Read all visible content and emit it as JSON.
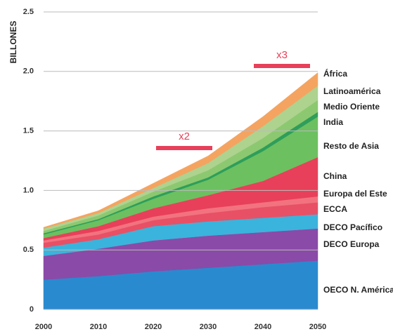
{
  "chart_data": {
    "type": "area",
    "stacked": true,
    "y_label": "BILLONES",
    "x": [
      2000,
      2010,
      2020,
      2030,
      2040,
      2050
    ],
    "xlim": [
      2000,
      2050
    ],
    "xticks": [
      2000,
      2010,
      2020,
      2030,
      2040,
      2050
    ],
    "ylim": [
      0,
      2.5
    ],
    "yticks": [
      0,
      0.5,
      {
        "value": 1,
        "label": "1.0"
      },
      1.5,
      {
        "value": 2,
        "label": "2.0"
      },
      2.5
    ],
    "grid": true,
    "annotations": [
      "x2",
      "x3"
    ],
    "annotation_color": "#e8405a",
    "series": [
      {
        "name": "OECO N. América",
        "color": "#2a8ad0",
        "values": [
          0.25,
          0.28,
          0.32,
          0.35,
          0.38,
          0.41
        ]
      },
      {
        "name": "DECO Europa",
        "color": "#8a4aa8",
        "values": [
          0.2,
          0.23,
          0.26,
          0.27,
          0.27,
          0.27
        ]
      },
      {
        "name": "DECO Pacífico",
        "color": "#3ab4dc",
        "values": [
          0.07,
          0.08,
          0.12,
          0.12,
          0.12,
          0.12
        ]
      },
      {
        "name": "ECCA",
        "color": "#e85066",
        "values": [
          0.04,
          0.04,
          0.05,
          0.07,
          0.09,
          0.1
        ]
      },
      {
        "name": "Europa del Este",
        "color": "#f2737f",
        "values": [
          0.02,
          0.03,
          0.03,
          0.04,
          0.04,
          0.05
        ]
      },
      {
        "name": "China",
        "color": "#e8405a",
        "values": [
          0.02,
          0.04,
          0.07,
          0.11,
          0.18,
          0.33
        ]
      },
      {
        "name": "Resto de Asia",
        "color": "#6cc060",
        "values": [
          0.03,
          0.05,
          0.08,
          0.13,
          0.25,
          0.34
        ]
      },
      {
        "name": "India",
        "color": "#2e9e5a",
        "values": [
          0.01,
          0.01,
          0.02,
          0.02,
          0.03,
          0.04
        ]
      },
      {
        "name": "Medio Oriente",
        "color": "#8cc870",
        "values": [
          0.02,
          0.03,
          0.04,
          0.06,
          0.08,
          0.1
        ]
      },
      {
        "name": "Latinoamérica",
        "color": "#add38f",
        "values": [
          0.02,
          0.02,
          0.03,
          0.06,
          0.1,
          0.12
        ]
      },
      {
        "name": "África",
        "color": "#f4a460",
        "values": [
          0.01,
          0.02,
          0.04,
          0.06,
          0.08,
          0.11
        ]
      }
    ]
  }
}
